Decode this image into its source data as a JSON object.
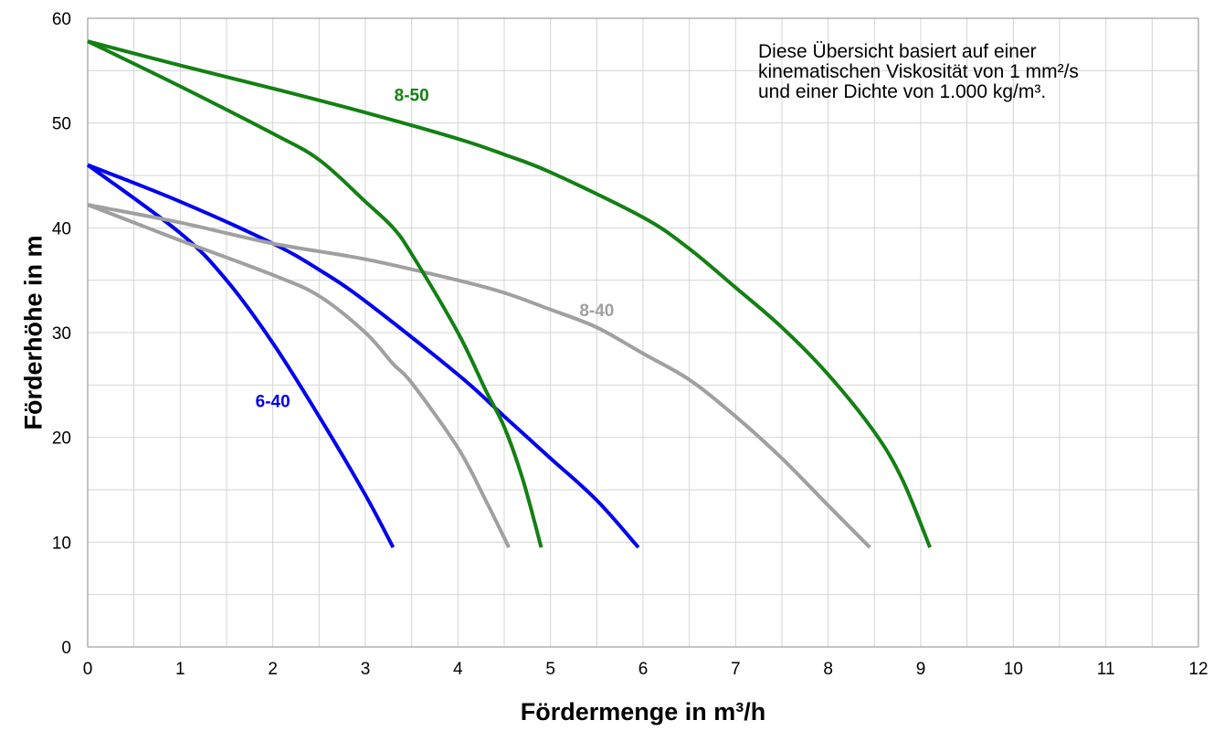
{
  "chart_data": {
    "type": "line",
    "xlabel": "Fördermenge in m³/h",
    "ylabel": "Förderhöhe in m",
    "xlim": [
      0,
      12
    ],
    "ylim": [
      0,
      60
    ],
    "x_ticks": [
      0,
      1,
      2,
      3,
      4,
      5,
      6,
      7,
      8,
      9,
      10,
      11,
      12
    ],
    "y_ticks": [
      0,
      10,
      20,
      30,
      40,
      50,
      60
    ],
    "x_minor_step": 0.5,
    "y_minor_step": 5,
    "grid": true,
    "annotation": [
      "Diese Übersicht basiert auf einer",
      "kinematischen Viskosität von 1 mm²/s",
      "und einer Dichte von 1.000 kg/m³."
    ],
    "series": [
      {
        "color": "#0000ee",
        "points": [
          [
            0,
            46
          ],
          [
            1,
            39.5
          ],
          [
            1.5,
            35
          ],
          [
            2,
            29
          ],
          [
            2.5,
            22
          ],
          [
            3,
            14.5
          ],
          [
            3.3,
            9.5
          ]
        ]
      },
      {
        "color": "#0000ee",
        "points": [
          [
            0,
            46
          ],
          [
            1,
            42.5
          ],
          [
            2,
            38.5
          ],
          [
            2.5,
            36
          ],
          [
            3,
            33
          ],
          [
            4,
            26
          ],
          [
            4.5,
            22
          ],
          [
            5,
            18
          ],
          [
            5.5,
            14
          ],
          [
            5.95,
            9.5
          ]
        ]
      },
      {
        "color": "#a0a0a0",
        "points": [
          [
            0,
            42.2
          ],
          [
            0.5,
            40.5
          ],
          [
            1,
            38.8
          ],
          [
            2,
            35.5
          ],
          [
            2.5,
            33.5
          ],
          [
            3,
            30
          ],
          [
            3.3,
            27
          ],
          [
            3.5,
            25.2
          ],
          [
            4,
            19
          ],
          [
            4.3,
            14
          ],
          [
            4.55,
            9.5
          ]
        ]
      },
      {
        "color": "#a0a0a0",
        "points": [
          [
            0,
            42.2
          ],
          [
            1,
            40.5
          ],
          [
            2,
            38.5
          ],
          [
            3,
            37
          ],
          [
            4,
            35
          ],
          [
            4.5,
            33.8
          ],
          [
            5,
            32.2
          ],
          [
            5.5,
            30.5
          ],
          [
            6,
            28
          ],
          [
            6.5,
            25.5
          ],
          [
            7,
            22
          ],
          [
            7.5,
            18
          ],
          [
            8,
            13.5
          ],
          [
            8.45,
            9.5
          ]
        ]
      },
      {
        "color": "#138013",
        "points": [
          [
            0,
            57.8
          ],
          [
            1,
            53.5
          ],
          [
            2,
            49
          ],
          [
            2.5,
            46.5
          ],
          [
            3,
            42.5
          ],
          [
            3.3,
            40
          ],
          [
            3.5,
            37.5
          ],
          [
            4,
            30
          ],
          [
            4.3,
            24.5
          ],
          [
            4.5,
            21
          ],
          [
            4.7,
            16
          ],
          [
            4.9,
            9.5
          ]
        ]
      },
      {
        "color": "#138013",
        "points": [
          [
            0,
            57.8
          ],
          [
            1,
            55.5
          ],
          [
            2,
            53.3
          ],
          [
            3,
            51
          ],
          [
            4,
            48.5
          ],
          [
            4.5,
            47
          ],
          [
            5,
            45.3
          ],
          [
            6,
            41
          ],
          [
            6.5,
            38
          ],
          [
            7,
            34.3
          ],
          [
            7.5,
            30.5
          ],
          [
            8,
            26
          ],
          [
            8.5,
            20.5
          ],
          [
            8.8,
            16
          ],
          [
            9.1,
            9.5
          ]
        ]
      }
    ],
    "series_labels": [
      {
        "text": "6-40",
        "x": 2.0,
        "y": 23.5,
        "color": "#0000ee"
      },
      {
        "text": "8-40",
        "x": 5.5,
        "y": 32.2,
        "color": "#a0a0a0"
      },
      {
        "text": "8-50",
        "x": 3.5,
        "y": 52.7,
        "color": "#138013"
      }
    ]
  }
}
